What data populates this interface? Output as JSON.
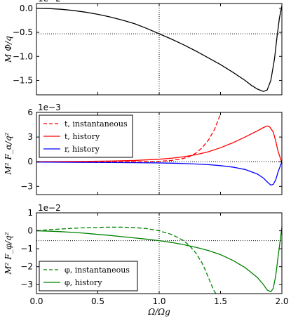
{
  "colors": {
    "black": "#000000",
    "red": "#ff0000",
    "blue": "#0000ff",
    "green": "#008000"
  },
  "shared_x": {
    "label": "Ω/Ω_g",
    "label_display": "Ω/Ωg",
    "ticks": [
      0.0,
      0.5,
      1.0,
      1.5,
      2.0
    ],
    "tick_labels": [
      "0.0",
      "0.5",
      "1.0",
      "1.5",
      "2.0"
    ],
    "xlim": [
      0.0,
      2.0
    ]
  },
  "chart_data": [
    {
      "type": "line",
      "ylabel": "M Φ/q",
      "exponent": "1e−2",
      "ylim": [
        -1.8,
        0.1
      ],
      "yticks": [
        0.0,
        -0.5,
        -1.0,
        -1.5
      ],
      "ytick_labels": [
        "0.0",
        "−0.5",
        "−1.0",
        "−1.5"
      ],
      "ref_lines": {
        "x": 1.0,
        "y": -0.53
      },
      "series": [
        {
          "color": "#000000",
          "dash": "solid",
          "x": [
            0.0,
            0.1,
            0.2,
            0.3,
            0.4,
            0.5,
            0.6,
            0.7,
            0.8,
            0.9,
            1.0,
            1.1,
            1.2,
            1.3,
            1.4,
            1.5,
            1.6,
            1.7,
            1.75,
            1.8,
            1.85,
            1.88,
            1.91,
            1.94,
            1.96,
            1.98,
            2.0
          ],
          "y": [
            0.0,
            -0.005,
            -0.02,
            -0.045,
            -0.08,
            -0.125,
            -0.18,
            -0.245,
            -0.32,
            -0.42,
            -0.53,
            -0.64,
            -0.76,
            -0.89,
            -1.03,
            -1.17,
            -1.33,
            -1.5,
            -1.6,
            -1.68,
            -1.73,
            -1.7,
            -1.5,
            -1.05,
            -0.6,
            -0.2,
            0.05
          ]
        }
      ]
    },
    {
      "type": "line",
      "ylabel": "M² F_α/q²",
      "exponent": "1e−3",
      "ylim": [
        -4.0,
        6.0
      ],
      "yticks": [
        6,
        3,
        0,
        -3
      ],
      "ytick_labels": [
        "6",
        "3",
        "0",
        "−3"
      ],
      "ref_lines": {
        "x": 1.0,
        "y": 0.0
      },
      "legend": [
        {
          "label": "t, instantaneous",
          "color": "#ff0000",
          "dash": "dashed"
        },
        {
          "label": "t, history",
          "color": "#ff0000",
          "dash": "solid"
        },
        {
          "label": "r, history",
          "color": "#0000ff",
          "dash": "solid"
        }
      ],
      "series": [
        {
          "name": "t, instantaneous",
          "color": "#ff0000",
          "dash": "dashed",
          "x": [
            0.0,
            0.2,
            0.4,
            0.6,
            0.8,
            1.0,
            1.1,
            1.2,
            1.25,
            1.3,
            1.35,
            1.4,
            1.45,
            1.5
          ],
          "y": [
            -0.05,
            -0.05,
            -0.04,
            -0.03,
            -0.01,
            0.05,
            0.15,
            0.4,
            0.65,
            1.05,
            1.7,
            2.6,
            3.9,
            5.8
          ]
        },
        {
          "name": "t, history",
          "color": "#ff0000",
          "dash": "solid",
          "x": [
            0.0,
            0.2,
            0.4,
            0.6,
            0.8,
            1.0,
            1.1,
            1.2,
            1.3,
            1.4,
            1.5,
            1.6,
            1.7,
            1.8,
            1.85,
            1.88,
            1.9,
            1.93,
            1.95,
            1.97,
            2.0
          ],
          "y": [
            0.0,
            0.01,
            0.04,
            0.08,
            0.15,
            0.3,
            0.42,
            0.6,
            0.85,
            1.2,
            1.7,
            2.3,
            3.0,
            3.75,
            4.15,
            4.35,
            4.25,
            3.6,
            2.5,
            1.2,
            -0.1
          ]
        },
        {
          "name": "r, history",
          "color": "#0000ff",
          "dash": "solid",
          "x": [
            0.0,
            0.2,
            0.4,
            0.6,
            0.8,
            1.0,
            1.1,
            1.2,
            1.3,
            1.4,
            1.5,
            1.6,
            1.7,
            1.8,
            1.85,
            1.88,
            1.91,
            1.93,
            1.95,
            1.97,
            2.0
          ],
          "y": [
            -0.05,
            -0.07,
            -0.09,
            -0.1,
            -0.12,
            -0.15,
            -0.18,
            -0.22,
            -0.28,
            -0.36,
            -0.48,
            -0.66,
            -0.95,
            -1.5,
            -2.0,
            -2.45,
            -2.85,
            -2.75,
            -2.2,
            -1.2,
            0.0
          ]
        }
      ]
    },
    {
      "type": "line",
      "ylabel": "M² F_φ/q²",
      "exponent": "1e−2",
      "xlabel": "Ω/Ω_g",
      "ylim": [
        -3.5,
        1.0
      ],
      "yticks": [
        1,
        0,
        -1,
        -2,
        -3
      ],
      "ytick_labels": [
        "1",
        "0",
        "−1",
        "−2",
        "−3"
      ],
      "ref_lines": {
        "x": 1.0,
        "y": -0.55
      },
      "legend": [
        {
          "label": "φ, instantaneous",
          "color": "#008000",
          "dash": "dashed"
        },
        {
          "label": "φ, history",
          "color": "#008000",
          "dash": "solid"
        }
      ],
      "series": [
        {
          "name": "φ, instantaneous",
          "color": "#008000",
          "dash": "dashed",
          "x": [
            0.0,
            0.1,
            0.2,
            0.3,
            0.4,
            0.5,
            0.6,
            0.7,
            0.8,
            0.9,
            1.0,
            1.1,
            1.2,
            1.25,
            1.3,
            1.35,
            1.38,
            1.41,
            1.44,
            1.47
          ],
          "y": [
            0.0,
            0.06,
            0.1,
            0.14,
            0.17,
            0.19,
            0.2,
            0.2,
            0.18,
            0.12,
            0.0,
            -0.2,
            -0.55,
            -0.85,
            -1.25,
            -1.8,
            -2.25,
            -2.75,
            -3.25,
            -3.6
          ]
        },
        {
          "name": "φ, history",
          "color": "#008000",
          "dash": "solid",
          "x": [
            0.0,
            0.1,
            0.2,
            0.3,
            0.4,
            0.5,
            0.6,
            0.7,
            0.8,
            0.9,
            1.0,
            1.1,
            1.2,
            1.3,
            1.4,
            1.5,
            1.6,
            1.7,
            1.8,
            1.85,
            1.88,
            1.91,
            1.93,
            1.95,
            1.97,
            2.0
          ],
          "y": [
            0.0,
            -0.02,
            -0.05,
            -0.09,
            -0.14,
            -0.2,
            -0.26,
            -0.33,
            -0.4,
            -0.47,
            -0.55,
            -0.65,
            -0.77,
            -0.92,
            -1.1,
            -1.33,
            -1.65,
            -2.05,
            -2.6,
            -3.0,
            -3.3,
            -3.4,
            -3.2,
            -2.5,
            -1.4,
            0.2
          ]
        }
      ]
    }
  ]
}
